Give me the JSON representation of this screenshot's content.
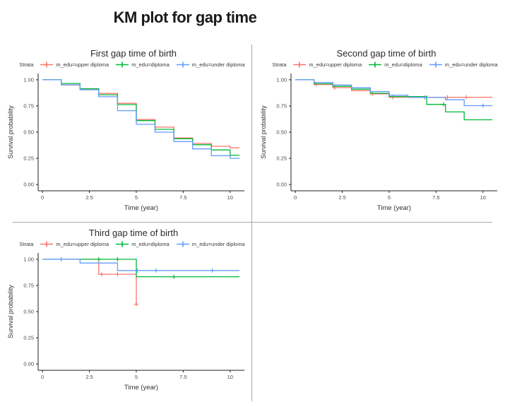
{
  "page": {
    "title": "KM plot for gap time"
  },
  "colors": {
    "upper": "#F8766D",
    "diploma": "#00BA38",
    "under": "#619CFF",
    "axis": "#1f1f1f",
    "tick_text": "#4a4a4a",
    "axis_title_text": "#333333",
    "divider": "#a8a8a8"
  },
  "chart_data": [
    {
      "type": "line",
      "subtype": "kaplan-meier-step",
      "title": "First gap time of birth",
      "xlabel": "Time (year)",
      "ylabel": "Survival probability",
      "legend_title": "Strata",
      "legend_position": "top",
      "grid": false,
      "xlim": [
        -0.23,
        10.76
      ],
      "ylim": [
        -0.06,
        1.06
      ],
      "x_ticks": [
        {
          "v": 0,
          "label": "0"
        },
        {
          "v": 2.5,
          "label": "2.5"
        },
        {
          "v": 5,
          "label": "5"
        },
        {
          "v": 7.5,
          "label": "7.5"
        },
        {
          "v": 10,
          "label": "10"
        }
      ],
      "y_ticks": [
        {
          "v": 0,
          "label": "0.00"
        },
        {
          "v": 0.25,
          "label": "0.25"
        },
        {
          "v": 0.5,
          "label": "0.50"
        },
        {
          "v": 0.75,
          "label": "0.75"
        },
        {
          "v": 1,
          "label": "1.00"
        }
      ],
      "series": [
        {
          "name": "m_edu=upper diploma",
          "color_key": "upper",
          "end": 10.5,
          "steps": [
            [
              0,
              1.0
            ],
            [
              1,
              0.95
            ],
            [
              2,
              0.91
            ],
            [
              3,
              0.87
            ],
            [
              4,
              0.775
            ],
            [
              5,
              0.62
            ],
            [
              6,
              0.548
            ],
            [
              7,
              0.445
            ],
            [
              8,
              0.392
            ],
            [
              9,
              0.365
            ],
            [
              10,
              0.35
            ]
          ],
          "censors": []
        },
        {
          "name": "m_edu=diploma",
          "color_key": "diploma",
          "end": 10.5,
          "steps": [
            [
              0,
              1.0
            ],
            [
              1,
              0.965
            ],
            [
              2,
              0.915
            ],
            [
              3,
              0.857
            ],
            [
              4,
              0.763
            ],
            [
              5,
              0.61
            ],
            [
              6,
              0.527
            ],
            [
              7,
              0.437
            ],
            [
              8,
              0.38
            ],
            [
              9,
              0.33
            ],
            [
              10,
              0.28
            ]
          ],
          "censors": []
        },
        {
          "name": "m_edu=under diploma",
          "color_key": "under",
          "end": 10.5,
          "steps": [
            [
              0,
              1.0
            ],
            [
              1,
              0.952
            ],
            [
              2,
              0.905
            ],
            [
              3,
              0.838
            ],
            [
              4,
              0.705
            ],
            [
              5,
              0.575
            ],
            [
              6,
              0.5
            ],
            [
              7,
              0.41
            ],
            [
              8,
              0.34
            ],
            [
              9,
              0.275
            ],
            [
              10,
              0.25
            ]
          ],
          "censors": []
        }
      ]
    },
    {
      "type": "line",
      "subtype": "kaplan-meier-step",
      "title": "Second gap time of birth",
      "xlabel": "Time (year)",
      "ylabel": "Survival probability",
      "legend_title": "Strata",
      "legend_position": "top",
      "grid": false,
      "xlim": [
        -0.23,
        10.76
      ],
      "ylim": [
        -0.06,
        1.06
      ],
      "x_ticks": [
        {
          "v": 0,
          "label": "0"
        },
        {
          "v": 2.5,
          "label": "2.5"
        },
        {
          "v": 5,
          "label": "5"
        },
        {
          "v": 7.5,
          "label": "7.5"
        },
        {
          "v": 10,
          "label": "10"
        }
      ],
      "y_ticks": [
        {
          "v": 0,
          "label": "0.00"
        },
        {
          "v": 0.25,
          "label": "0.25"
        },
        {
          "v": 0.5,
          "label": "0.50"
        },
        {
          "v": 0.75,
          "label": "0.75"
        },
        {
          "v": 1,
          "label": "1.00"
        }
      ],
      "series": [
        {
          "name": "m_edu=upper diploma",
          "color_key": "upper",
          "end": 10.5,
          "steps": [
            [
              0,
              1.0
            ],
            [
              1,
              0.955
            ],
            [
              2,
              0.925
            ],
            [
              3,
              0.896
            ],
            [
              4,
              0.865
            ],
            [
              5,
              0.833
            ]
          ],
          "censors": [
            [
              1.1,
              0.955
            ],
            [
              2.1,
              0.925
            ],
            [
              4.1,
              0.865
            ],
            [
              5.2,
              0.833
            ],
            [
              7.0,
              0.833
            ],
            [
              8.1,
              0.833
            ],
            [
              9.1,
              0.833
            ]
          ]
        },
        {
          "name": "m_edu=diploma",
          "color_key": "diploma",
          "end": 10.5,
          "steps": [
            [
              0,
              1.0
            ],
            [
              1,
              0.962
            ],
            [
              2,
              0.937
            ],
            [
              3,
              0.91
            ],
            [
              4,
              0.872
            ],
            [
              5,
              0.84
            ],
            [
              7,
              0.765
            ],
            [
              8,
              0.693
            ],
            [
              9,
              0.618
            ]
          ],
          "censors": [
            [
              7.9,
              0.765
            ]
          ]
        },
        {
          "name": "m_edu=under diploma",
          "color_key": "under",
          "end": 10.5,
          "steps": [
            [
              0,
              1.0
            ],
            [
              1,
              0.975
            ],
            [
              2,
              0.95
            ],
            [
              3,
              0.924
            ],
            [
              4,
              0.888
            ],
            [
              5,
              0.853
            ],
            [
              6,
              0.831
            ],
            [
              8,
              0.809
            ],
            [
              9,
              0.753
            ]
          ],
          "censors": [
            [
              6.9,
              0.831
            ],
            [
              10.0,
              0.753
            ]
          ]
        }
      ]
    },
    {
      "type": "line",
      "subtype": "kaplan-meier-step",
      "title": "Third gap time of birth",
      "xlabel": "Time (year)",
      "ylabel": "Survival probability",
      "legend_title": "Strata",
      "legend_position": "top",
      "grid": false,
      "xlim": [
        -0.23,
        10.76
      ],
      "ylim": [
        -0.06,
        1.06
      ],
      "x_ticks": [
        {
          "v": 0,
          "label": "0"
        },
        {
          "v": 2.5,
          "label": "2.5"
        },
        {
          "v": 5,
          "label": "5"
        },
        {
          "v": 7.5,
          "label": "7.5"
        },
        {
          "v": 10,
          "label": "10"
        }
      ],
      "y_ticks": [
        {
          "v": 0,
          "label": "0.00"
        },
        {
          "v": 0.25,
          "label": "0.25"
        },
        {
          "v": 0.5,
          "label": "0.50"
        },
        {
          "v": 0.75,
          "label": "0.75"
        },
        {
          "v": 1,
          "label": "1.00"
        }
      ],
      "series": [
        {
          "name": "m_edu=upper diploma",
          "color_key": "upper",
          "end": 5,
          "steps": [
            [
              0,
              1.0
            ],
            [
              3,
              0.857
            ],
            [
              5,
              0.571
            ]
          ],
          "censors": [
            [
              3.15,
              0.857
            ],
            [
              4.0,
              0.857
            ],
            [
              5,
              0.571
            ]
          ]
        },
        {
          "name": "m_edu=diploma",
          "color_key": "diploma",
          "end": 10.5,
          "steps": [
            [
              0,
              1.0
            ],
            [
              5,
              0.833
            ]
          ],
          "censors": [
            [
              3,
              1.0
            ],
            [
              4,
              1.0
            ],
            [
              7,
              0.833
            ]
          ]
        },
        {
          "name": "m_edu=under diploma",
          "color_key": "under",
          "end": 10.5,
          "steps": [
            [
              0,
              1.0
            ],
            [
              2,
              0.964
            ],
            [
              4,
              0.893
            ]
          ],
          "censors": [
            [
              1,
              1.0
            ],
            [
              5.05,
              0.893
            ],
            [
              6.05,
              0.893
            ],
            [
              9.05,
              0.893
            ]
          ]
        }
      ]
    }
  ]
}
